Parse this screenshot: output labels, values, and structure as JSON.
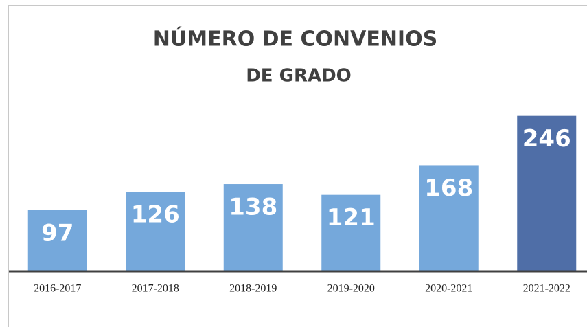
{
  "chart_data": {
    "type": "bar",
    "title": "NÚMERO DE CONVENIOS",
    "subtitle": "DE GRADO",
    "categories": [
      "2016-2017",
      "2017-2018",
      "2018-2019",
      "2019-2020",
      "2020-2021",
      "2021-2022"
    ],
    "values": [
      97,
      126,
      138,
      121,
      168,
      246
    ],
    "colors": [
      "#75a8db",
      "#75a8db",
      "#75a8db",
      "#75a8db",
      "#75a8db",
      "#4f6ea7"
    ],
    "ylim": [
      0,
      250
    ]
  }
}
